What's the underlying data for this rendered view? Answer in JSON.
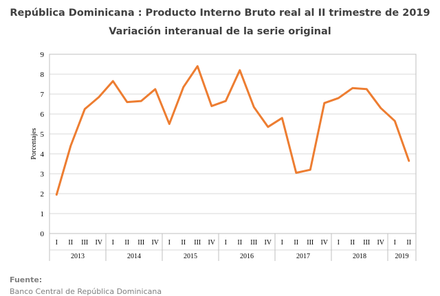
{
  "header": {
    "title": "República Dominicana : Producto Interno Bruto real al II trimestre de 2019",
    "subtitle": "Variación interanual de la serie original"
  },
  "footer": {
    "source_label": "Fuente:",
    "source_text": "Banco Central de República Dominicana"
  },
  "chart_data": {
    "type": "line",
    "ylabel": "Porcentajes",
    "ylim": [
      0,
      9
    ],
    "yticks": [
      0,
      1,
      2,
      3,
      4,
      5,
      6,
      7,
      8,
      9
    ],
    "grid": true,
    "legend": "none",
    "line_color": "#ed7d31",
    "quarters": [
      "I",
      "II",
      "III",
      "IV",
      "I",
      "II",
      "III",
      "IV",
      "I",
      "II",
      "III",
      "IV",
      "I",
      "II",
      "III",
      "IV",
      "I",
      "II",
      "III",
      "IV",
      "I",
      "II",
      "III",
      "IV",
      "I",
      "II"
    ],
    "years": [
      {
        "label": "2013",
        "count": 4
      },
      {
        "label": "2014",
        "count": 4
      },
      {
        "label": "2015",
        "count": 4
      },
      {
        "label": "2016",
        "count": 4
      },
      {
        "label": "2017",
        "count": 4
      },
      {
        "label": "2018",
        "count": 4
      },
      {
        "label": "2019",
        "count": 2
      }
    ],
    "values": [
      1.95,
      4.4,
      6.25,
      6.85,
      7.65,
      6.6,
      6.65,
      7.25,
      5.5,
      7.35,
      8.4,
      6.4,
      6.65,
      8.2,
      6.35,
      5.35,
      5.8,
      3.05,
      3.2,
      6.55,
      6.8,
      7.3,
      7.25,
      6.3,
      5.65,
      3.65
    ]
  }
}
